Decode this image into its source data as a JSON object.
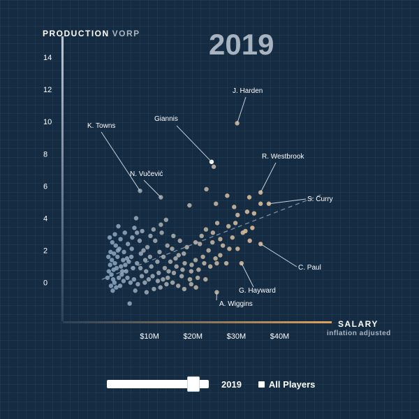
{
  "chart_data": {
    "type": "scatter",
    "title": "2019",
    "ylabel_strong": "PRODUCTION",
    "ylabel_soft": "VORP",
    "xlabel": "SALARY",
    "xlabel_sub": "inflation adjusted",
    "x_unit": "millions USD",
    "xlim": [
      -10,
      52
    ],
    "ylim": [
      -2.4,
      15.3
    ],
    "x_ticks": [
      10,
      20,
      30,
      40
    ],
    "x_tick_labels": [
      "$10M",
      "$20M",
      "$30M",
      "$40M"
    ],
    "y_ticks": [
      0,
      2,
      4,
      6,
      8,
      10,
      12,
      14
    ],
    "y_tick_labels": [
      "0",
      "2",
      "4",
      "6",
      "8",
      "10",
      "12",
      "14"
    ],
    "grid": true,
    "trend_line": {
      "x": [
        -1,
        50
      ],
      "y": [
        0.2,
        5.5
      ],
      "style": "dashed"
    },
    "colors": {
      "low_salary": "#8ca8c2",
      "high_salary": "#e6c49a",
      "highlight": "#ffffff",
      "background": "#152b42"
    },
    "annotations": [
      {
        "label": "J. Harden",
        "x": 30.2,
        "y": 9.9
      },
      {
        "label": "Giannis",
        "x": 24.3,
        "y": 7.5,
        "highlight": true
      },
      {
        "label": "K. Towns",
        "x": 7.8,
        "y": 5.7
      },
      {
        "label": "N. Vučević",
        "x": 12.6,
        "y": 5.3
      },
      {
        "label": "R. Westbrook",
        "x": 35.6,
        "y": 5.6
      },
      {
        "label": "S. Curry",
        "x": 37.5,
        "y": 4.9
      },
      {
        "label": "C. Paul",
        "x": 35.6,
        "y": 2.4
      },
      {
        "label": "G. Hayward",
        "x": 31.2,
        "y": 1.2
      },
      {
        "label": "A. Wiggins",
        "x": 25.5,
        "y": -0.6
      }
    ],
    "points": [
      {
        "x": 24.8,
        "y": 7.2
      },
      {
        "x": 35.6,
        "y": 4.9
      },
      {
        "x": 33.0,
        "y": 5.3
      },
      {
        "x": 27.9,
        "y": 5.4
      },
      {
        "x": 23.1,
        "y": 5.8
      },
      {
        "x": 25.3,
        "y": 4.9
      },
      {
        "x": 29.5,
        "y": 4.7
      },
      {
        "x": 32.5,
        "y": 4.4
      },
      {
        "x": 34.1,
        "y": 4.3
      },
      {
        "x": 30.3,
        "y": 4.2
      },
      {
        "x": 29.8,
        "y": 3.7
      },
      {
        "x": 33.7,
        "y": 3.4
      },
      {
        "x": 32.1,
        "y": 3.2
      },
      {
        "x": 28.2,
        "y": 3.5
      },
      {
        "x": 24.6,
        "y": 3.1
      },
      {
        "x": 25.6,
        "y": 3.7
      },
      {
        "x": 23.0,
        "y": 3.3
      },
      {
        "x": 22.0,
        "y": 2.9
      },
      {
        "x": 26.3,
        "y": 2.7
      },
      {
        "x": 29.1,
        "y": 2.8
      },
      {
        "x": 31.5,
        "y": 3.1
      },
      {
        "x": 19.2,
        "y": 4.8
      },
      {
        "x": 20.6,
        "y": 2.5
      },
      {
        "x": 21.6,
        "y": 2.4
      },
      {
        "x": 23.6,
        "y": 2.0
      },
      {
        "x": 26.3,
        "y": 1.7
      },
      {
        "x": 28.4,
        "y": 2.1
      },
      {
        "x": 30.3,
        "y": 2.1
      },
      {
        "x": 33.1,
        "y": 2.6
      },
      {
        "x": 25.2,
        "y": 1.5
      },
      {
        "x": 22.3,
        "y": 1.6
      },
      {
        "x": 20.6,
        "y": 1.4
      },
      {
        "x": 18.1,
        "y": 1.2
      },
      {
        "x": 24.0,
        "y": 1.0
      },
      {
        "x": 25.5,
        "y": 1.2
      },
      {
        "x": 27.7,
        "y": 1.2
      },
      {
        "x": 21.3,
        "y": 0.8
      },
      {
        "x": 19.6,
        "y": 0.7
      },
      {
        "x": 17.6,
        "y": 0.8
      },
      {
        "x": 16.2,
        "y": 1.0
      },
      {
        "x": 14.8,
        "y": 1.3
      },
      {
        "x": 13.2,
        "y": 1.6
      },
      {
        "x": 12.3,
        "y": 1.9
      },
      {
        "x": 15.2,
        "y": 2.1
      },
      {
        "x": 16.7,
        "y": 1.7
      },
      {
        "x": 18.6,
        "y": 2.2
      },
      {
        "x": 17.0,
        "y": 2.6
      },
      {
        "x": 14.1,
        "y": 2.3
      },
      {
        "x": 11.3,
        "y": 2.6
      },
      {
        "x": 12.8,
        "y": 3.1
      },
      {
        "x": 10.9,
        "y": 3.3
      },
      {
        "x": 13.8,
        "y": 3.9
      },
      {
        "x": 12.6,
        "y": 3.6
      },
      {
        "x": 15.5,
        "y": 2.9
      },
      {
        "x": 9.5,
        "y": 2.2
      },
      {
        "x": 10.1,
        "y": 1.6
      },
      {
        "x": 11.8,
        "y": 1.3
      },
      {
        "x": 13.5,
        "y": 0.9
      },
      {
        "x": 15.6,
        "y": 0.6
      },
      {
        "x": 17.4,
        "y": 0.4
      },
      {
        "x": 19.3,
        "y": 0.2
      },
      {
        "x": 21.1,
        "y": 0.3
      },
      {
        "x": 22.9,
        "y": 0.2
      },
      {
        "x": 14.2,
        "y": 0.3
      },
      {
        "x": 12.1,
        "y": 0.6
      },
      {
        "x": 10.4,
        "y": 1.0
      },
      {
        "x": 9.0,
        "y": 1.4
      },
      {
        "x": 8.0,
        "y": 1.8
      },
      {
        "x": 7.1,
        "y": 1.2
      },
      {
        "x": 6.2,
        "y": 0.9
      },
      {
        "x": 5.2,
        "y": 1.3
      },
      {
        "x": 4.6,
        "y": 0.7
      },
      {
        "x": 3.4,
        "y": 1.0
      },
      {
        "x": 5.9,
        "y": 2.1
      },
      {
        "x": 7.7,
        "y": 2.6
      },
      {
        "x": 6.5,
        "y": 3.4
      },
      {
        "x": 7.1,
        "y": 3.1
      },
      {
        "x": 8.3,
        "y": 3.2
      },
      {
        "x": 6.9,
        "y": 4.0
      },
      {
        "x": 4.3,
        "y": 3.1
      },
      {
        "x": 2.8,
        "y": 3.5
      },
      {
        "x": 3.3,
        "y": 2.7
      },
      {
        "x": 2.2,
        "y": 2.3
      },
      {
        "x": 1.8,
        "y": 1.8
      },
      {
        "x": 1.4,
        "y": 2.5
      },
      {
        "x": 1.0,
        "y": 1.9
      },
      {
        "x": 2.6,
        "y": 1.6
      },
      {
        "x": 3.0,
        "y": 2.1
      },
      {
        "x": 4.1,
        "y": 1.9
      },
      {
        "x": 5.0,
        "y": 2.4
      },
      {
        "x": 4.8,
        "y": 1.5
      },
      {
        "x": 3.7,
        "y": 0.7
      },
      {
        "x": 2.9,
        "y": 0.3
      },
      {
        "x": 2.3,
        "y": -0.3
      },
      {
        "x": 1.6,
        "y": 0.2
      },
      {
        "x": 1.2,
        "y": 0.5
      },
      {
        "x": 0.9,
        "y": 1.1
      },
      {
        "x": 1.3,
        "y": 1.4
      },
      {
        "x": 1.7,
        "y": 0.8
      },
      {
        "x": 2.0,
        "y": 1.2
      },
      {
        "x": 2.4,
        "y": 0.9
      },
      {
        "x": 1.1,
        "y": -0.2
      },
      {
        "x": 0.3,
        "y": 0.3
      },
      {
        "x": 0.6,
        "y": 0.7
      },
      {
        "x": 1.5,
        "y": -0.5
      },
      {
        "x": 3.2,
        "y": -0.2
      },
      {
        "x": 4.0,
        "y": 0.1
      },
      {
        "x": 4.9,
        "y": 0.3
      },
      {
        "x": 5.6,
        "y": 0.0
      },
      {
        "x": 6.4,
        "y": 0.2
      },
      {
        "x": 7.3,
        "y": -0.1
      },
      {
        "x": 8.2,
        "y": 0.4
      },
      {
        "x": 8.9,
        "y": 0.0
      },
      {
        "x": 9.8,
        "y": 0.2
      },
      {
        "x": 11.0,
        "y": -0.4
      },
      {
        "x": 12.5,
        "y": -0.3
      },
      {
        "x": 13.9,
        "y": -0.1
      },
      {
        "x": 15.3,
        "y": 0.0
      },
      {
        "x": 16.6,
        "y": -0.2
      },
      {
        "x": 18.0,
        "y": -0.4
      },
      {
        "x": 19.6,
        "y": -0.1
      },
      {
        "x": 20.7,
        "y": -0.3
      },
      {
        "x": 6.7,
        "y": -0.5
      },
      {
        "x": 9.3,
        "y": -0.6
      },
      {
        "x": 5.4,
        "y": -1.3
      },
      {
        "x": 3.6,
        "y": 0.5
      },
      {
        "x": 4.4,
        "y": 1.1
      },
      {
        "x": 5.8,
        "y": 1.6
      },
      {
        "x": 7.9,
        "y": 0.9
      },
      {
        "x": 9.2,
        "y": 0.7
      },
      {
        "x": 10.7,
        "y": 0.4
      },
      {
        "x": 11.9,
        "y": 0.1
      },
      {
        "x": 13.1,
        "y": 0.2
      },
      {
        "x": 14.4,
        "y": 0.7
      },
      {
        "x": 16.0,
        "y": 1.5
      },
      {
        "x": 17.9,
        "y": 1.8
      },
      {
        "x": 19.7,
        "y": 1.1
      },
      {
        "x": 22.6,
        "y": 1.2
      },
      {
        "x": 24.5,
        "y": 2.5
      },
      {
        "x": 26.9,
        "y": 2.3
      },
      {
        "x": 2.0,
        "y": 3.0
      },
      {
        "x": 0.8,
        "y": 2.8
      },
      {
        "x": 1.9,
        "y": 0.0
      },
      {
        "x": 0.5,
        "y": 1.6
      },
      {
        "x": 2.7,
        "y": 2.0
      },
      {
        "x": 3.9,
        "y": 1.4
      },
      {
        "x": 6.0,
        "y": 2.8
      },
      {
        "x": 8.6,
        "y": 2.0
      },
      {
        "x": 10.2,
        "y": 2.9
      }
    ]
  },
  "controls": {
    "slider_year": "2019",
    "slider_value_fraction": 0.9,
    "all_players_label": "All Players",
    "all_players_checked": true
  }
}
